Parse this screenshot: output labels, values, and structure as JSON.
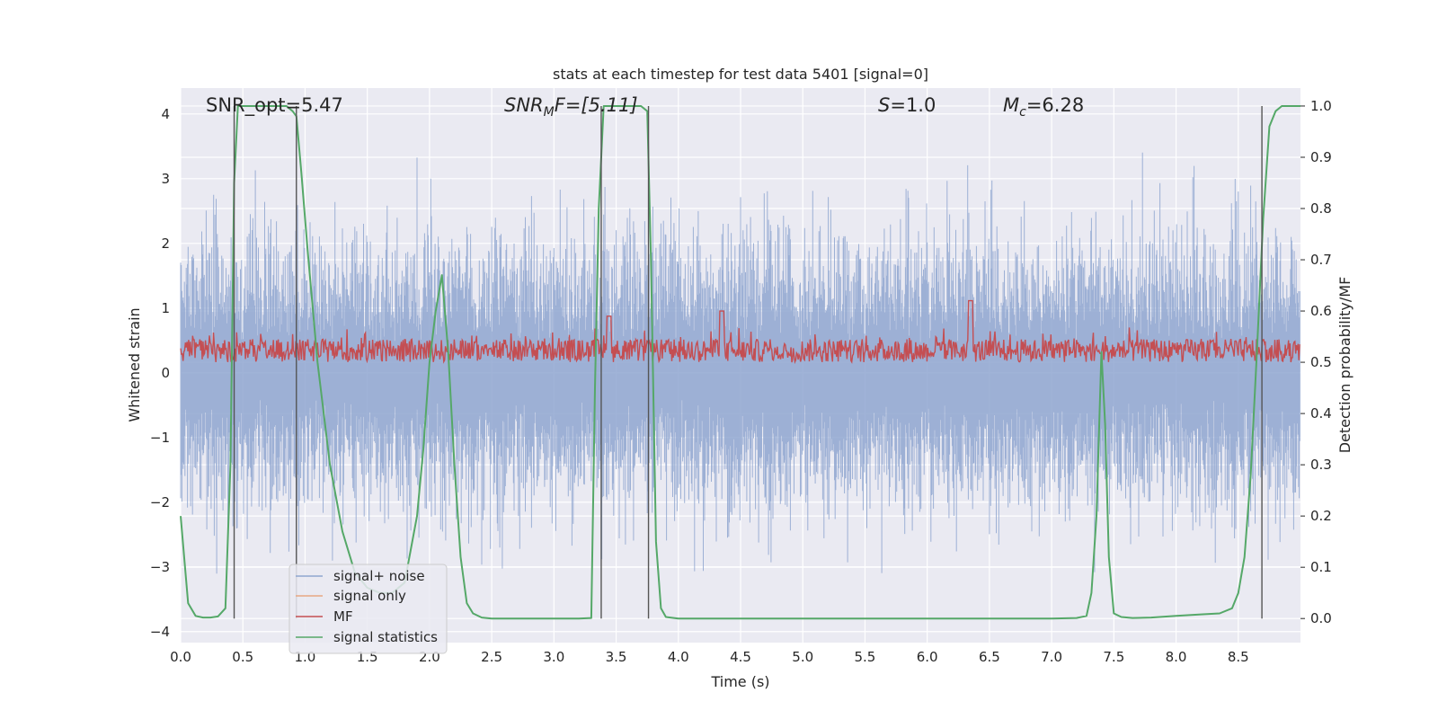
{
  "chart_data": {
    "type": "line",
    "title": "stats at each timestep for test data 5401 [signal=0]",
    "xlabel": "Time (s)",
    "ylabel": "Whitened strain",
    "ylabel_right": "Detection probability/MF",
    "xlim": [
      0.0,
      9.0
    ],
    "ylim": [
      -4.17,
      4.4
    ],
    "ylim_right": [
      -0.047,
      1.035
    ],
    "xticks": [
      "0.0",
      "0.5",
      "1.0",
      "1.5",
      "2.0",
      "2.5",
      "3.0",
      "3.5",
      "4.0",
      "4.5",
      "5.0",
      "5.5",
      "6.0",
      "6.5",
      "7.0",
      "7.5",
      "8.0",
      "8.5"
    ],
    "yticks_left": [
      "−4",
      "−3",
      "−2",
      "−1",
      "0",
      "1",
      "2",
      "3",
      "4"
    ],
    "yticks_right": [
      "0.0",
      "0.1",
      "0.2",
      "0.3",
      "0.4",
      "0.5",
      "0.6",
      "0.7",
      "0.8",
      "0.9",
      "1.0"
    ],
    "annotations": {
      "snr_opt": "SNR_opt=5.47",
      "snr_mf_sym": "SNR",
      "snr_mf_sub": "M",
      "snr_mf_rest": "F=[5.11]",
      "s_sym": "S",
      "s_val": "=1.0",
      "mc_sym": "M",
      "mc_sub": "c",
      "mc_val": "=6.28"
    },
    "legend": {
      "position": "lower-left",
      "entries": [
        {
          "label": "signal+ noise",
          "color": "#8fa6d0"
        },
        {
          "label": "signal only",
          "color": "#e8a883"
        },
        {
          "label": "MF",
          "color": "#c44e52"
        },
        {
          "label": "signal statistics",
          "color": "#55a868"
        }
      ]
    },
    "vlines_x": [
      0.43,
      0.93,
      3.38,
      3.76,
      8.69
    ],
    "series": [
      {
        "name": "signal statistics",
        "axis": "right",
        "color": "#55a868",
        "x": [
          0.0,
          0.06,
          0.12,
          0.18,
          0.24,
          0.3,
          0.36,
          0.4,
          0.43,
          0.46,
          0.5,
          0.55,
          0.7,
          0.85,
          0.9,
          0.93,
          0.97,
          1.02,
          1.1,
          1.2,
          1.3,
          1.4,
          1.5,
          1.6,
          1.7,
          1.8,
          1.9,
          1.95,
          2.0,
          2.05,
          2.1,
          2.15,
          2.2,
          2.25,
          2.3,
          2.35,
          2.42,
          2.5,
          2.7,
          3.0,
          3.2,
          3.3,
          3.33,
          3.36,
          3.4,
          3.44,
          3.5,
          3.6,
          3.7,
          3.75,
          3.78,
          3.82,
          3.86,
          3.9,
          4.0,
          4.5,
          5.0,
          5.5,
          6.0,
          6.5,
          7.0,
          7.2,
          7.28,
          7.32,
          7.36,
          7.4,
          7.43,
          7.46,
          7.5,
          7.56,
          7.65,
          7.8,
          8.0,
          8.2,
          8.35,
          8.45,
          8.5,
          8.55,
          8.6,
          8.65,
          8.7,
          8.75,
          8.8,
          8.85,
          8.9,
          9.0
        ],
        "values": [
          0.2,
          0.03,
          0.005,
          0.002,
          0.002,
          0.004,
          0.02,
          0.3,
          0.85,
          1.0,
          1.0,
          1.0,
          1.0,
          1.0,
          0.99,
          0.98,
          0.87,
          0.72,
          0.5,
          0.3,
          0.17,
          0.09,
          0.06,
          0.05,
          0.05,
          0.07,
          0.2,
          0.33,
          0.5,
          0.6,
          0.67,
          0.52,
          0.3,
          0.12,
          0.03,
          0.01,
          0.002,
          0.0,
          0.0,
          0.0,
          0.0,
          0.001,
          0.45,
          0.8,
          1.0,
          1.0,
          1.0,
          1.0,
          1.0,
          0.99,
          0.7,
          0.15,
          0.02,
          0.003,
          0.0,
          0.0,
          0.0,
          0.0,
          0.0,
          0.0,
          0.0,
          0.001,
          0.005,
          0.05,
          0.2,
          0.52,
          0.38,
          0.12,
          0.01,
          0.003,
          0.001,
          0.002,
          0.005,
          0.008,
          0.01,
          0.02,
          0.05,
          0.12,
          0.28,
          0.52,
          0.78,
          0.96,
          0.99,
          1.0,
          1.0,
          1.0
        ]
      },
      {
        "name": "signal+ noise",
        "axis": "left",
        "color": "#8fa6d0",
        "description": "dense whitened noise, roughly within ±3.5 over 0–9 s"
      },
      {
        "name": "MF",
        "axis": "right",
        "color": "#c44e52",
        "description": "matched-filter output, mostly between 0.5 and 0.56 with peaks near 4.35 s and 6.35 s"
      }
    ]
  }
}
